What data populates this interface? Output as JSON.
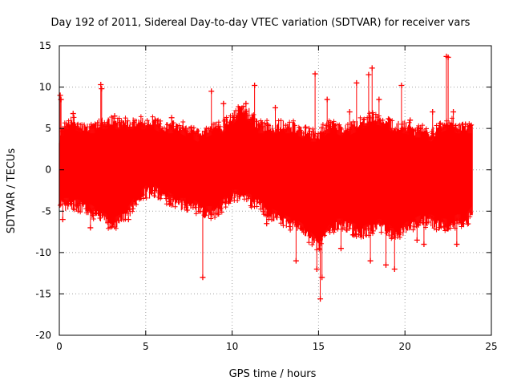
{
  "chart_data": {
    "type": "scatter",
    "title": "Day 192 of 2011, Sidereal Day-to-day VTEC variation (SDTVAR) for receiver vars",
    "xlabel": "GPS time / hours",
    "ylabel": "SDTVAR / TECUs",
    "xlim": [
      0,
      25
    ],
    "ylim": [
      -20,
      15
    ],
    "x_ticks": [
      0,
      5,
      10,
      15,
      20,
      25
    ],
    "y_ticks": [
      -20,
      -15,
      -10,
      -5,
      0,
      5,
      10,
      15
    ],
    "grid": true,
    "marker": "plus-with-errorbars",
    "series_color": "#ff0000",
    "envelope": {
      "x": [
        0.0,
        0.3,
        0.8,
        1.5,
        2.0,
        2.5,
        3.0,
        3.5,
        4.0,
        4.5,
        5.0,
        5.5,
        6.0,
        6.5,
        7.0,
        7.5,
        8.0,
        8.5,
        9.0,
        9.5,
        10.0,
        10.5,
        11.0,
        11.5,
        12.0,
        12.5,
        13.0,
        13.5,
        14.0,
        14.5,
        15.0,
        15.5,
        16.0,
        16.5,
        17.0,
        17.5,
        18.0,
        18.5,
        19.0,
        19.5,
        20.0,
        20.5,
        21.0,
        21.5,
        22.0,
        22.5,
        23.0,
        23.5,
        23.9
      ],
      "upper": [
        3.0,
        5.5,
        5.5,
        5.0,
        5.0,
        5.5,
        5.5,
        5.5,
        5.5,
        5.5,
        5.5,
        5.5,
        5.0,
        5.0,
        5.0,
        4.5,
        4.0,
        4.5,
        5.0,
        5.0,
        6.0,
        7.0,
        6.5,
        5.0,
        5.0,
        5.0,
        5.0,
        5.0,
        4.5,
        4.0,
        4.0,
        5.0,
        5.0,
        4.5,
        5.0,
        5.5,
        6.0,
        6.0,
        5.5,
        5.0,
        5.0,
        4.5,
        4.5,
        4.0,
        5.0,
        5.5,
        5.0,
        5.0,
        5.0
      ],
      "lower": [
        -4.0,
        -4.0,
        -4.0,
        -4.5,
        -5.0,
        -5.5,
        -6.5,
        -6.0,
        -5.0,
        -3.5,
        -2.5,
        -2.5,
        -3.0,
        -3.5,
        -4.0,
        -4.0,
        -4.5,
        -5.0,
        -5.0,
        -4.0,
        -3.0,
        -3.0,
        -3.5,
        -4.0,
        -5.0,
        -5.5,
        -6.0,
        -6.5,
        -7.0,
        -8.0,
        -9.0,
        -7.5,
        -6.5,
        -6.5,
        -7.0,
        -7.5,
        -7.0,
        -6.5,
        -7.0,
        -8.0,
        -7.0,
        -6.5,
        -6.0,
        -6.0,
        -6.5,
        -6.5,
        -6.0,
        -6.0,
        -5.0
      ]
    },
    "outliers": [
      {
        "x": 0.05,
        "y": 9.0
      },
      {
        "x": 0.1,
        "y": 8.5
      },
      {
        "x": 0.2,
        "y": -6.0
      },
      {
        "x": 0.8,
        "y": 6.8
      },
      {
        "x": 2.4,
        "y": 10.3
      },
      {
        "x": 2.45,
        "y": 9.8
      },
      {
        "x": 3.2,
        "y": 6.5
      },
      {
        "x": 6.5,
        "y": 6.3
      },
      {
        "x": 8.3,
        "y": -13.0
      },
      {
        "x": 8.8,
        "y": 9.5
      },
      {
        "x": 9.5,
        "y": 8.0
      },
      {
        "x": 10.8,
        "y": 8.0
      },
      {
        "x": 11.3,
        "y": 10.2
      },
      {
        "x": 12.5,
        "y": 7.5
      },
      {
        "x": 13.7,
        "y": -11.0
      },
      {
        "x": 14.8,
        "y": 11.6
      },
      {
        "x": 14.9,
        "y": -12.0
      },
      {
        "x": 15.1,
        "y": -15.6
      },
      {
        "x": 15.2,
        "y": -13.0
      },
      {
        "x": 15.5,
        "y": 8.5
      },
      {
        "x": 17.2,
        "y": 10.5
      },
      {
        "x": 17.9,
        "y": 11.5
      },
      {
        "x": 18.1,
        "y": 12.3
      },
      {
        "x": 18.0,
        "y": -11.0
      },
      {
        "x": 18.5,
        "y": 8.5
      },
      {
        "x": 18.9,
        "y": -11.5
      },
      {
        "x": 19.4,
        "y": -12.0
      },
      {
        "x": 19.8,
        "y": 10.2
      },
      {
        "x": 20.3,
        "y": 6.0
      },
      {
        "x": 21.1,
        "y": -9.0
      },
      {
        "x": 22.4,
        "y": 13.7
      },
      {
        "x": 22.5,
        "y": 13.6
      },
      {
        "x": 22.8,
        "y": 7.0
      },
      {
        "x": 23.0,
        "y": -9.0
      },
      {
        "x": 23.5,
        "y": 5.5
      },
      {
        "x": 1.8,
        "y": -7.0
      },
      {
        "x": 4.0,
        "y": -6.0
      },
      {
        "x": 12.0,
        "y": -6.5
      },
      {
        "x": 16.3,
        "y": -9.5
      },
      {
        "x": 16.8,
        "y": 7.0
      },
      {
        "x": 20.7,
        "y": -8.5
      },
      {
        "x": 21.6,
        "y": 7.0
      }
    ]
  }
}
